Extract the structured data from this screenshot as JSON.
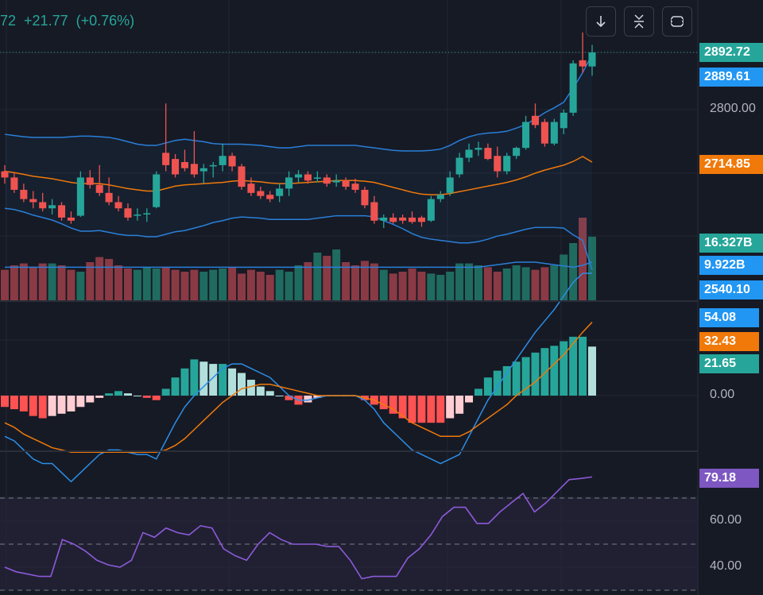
{
  "header": {
    "last_fragment": "72",
    "change": "+21.77",
    "change_pct": "(+0.76%)"
  },
  "toolbar": {
    "buttons": [
      {
        "icon": "arrow-down-icon"
      },
      {
        "icon": "collapse-icon"
      },
      {
        "icon": "fullscreen-icon"
      }
    ]
  },
  "colors": {
    "background": "#161a25",
    "grid": "#232733",
    "up": "#26a69a",
    "down": "#ef5350",
    "up_volume": "#1f6b60",
    "down_volume": "#8a3a44",
    "bollinger": "#2a7fd8",
    "basis": "#f0790a",
    "macd_line": "#2d8ee6",
    "signal_line": "#f0790a",
    "rsi": "#8c5ad8",
    "rsi_band": "#2a2540"
  },
  "price_tags": {
    "last": "2892.72",
    "bb_upper": "2889.61",
    "basis": "2714.85",
    "volume": "16.327B",
    "volume_ma": "9.922B",
    "bb_lower": "2540.10",
    "macd": "54.08",
    "signal": "32.43",
    "histogram": "21.65",
    "rsi": "79.18"
  },
  "axis_labels": {
    "price": [
      "2800.00"
    ],
    "macd": [
      "0.00"
    ],
    "rsi": [
      "60.00",
      "40.00"
    ]
  },
  "chart_data": [
    {
      "type": "candlestick",
      "panel": "price",
      "price_range": [
        2520,
        2920
      ],
      "candles": [
        {
          "o": 2700,
          "h": 2710,
          "l": 2680,
          "c": 2690
        },
        {
          "o": 2690,
          "h": 2698,
          "l": 2665,
          "c": 2670
        },
        {
          "o": 2670,
          "h": 2680,
          "l": 2650,
          "c": 2655
        },
        {
          "o": 2655,
          "h": 2668,
          "l": 2640,
          "c": 2650
        },
        {
          "o": 2650,
          "h": 2665,
          "l": 2635,
          "c": 2640
        },
        {
          "o": 2640,
          "h": 2655,
          "l": 2630,
          "c": 2645
        },
        {
          "o": 2645,
          "h": 2650,
          "l": 2620,
          "c": 2625
        },
        {
          "o": 2625,
          "h": 2635,
          "l": 2615,
          "c": 2620
        },
        {
          "o": 2628,
          "h": 2700,
          "l": 2626,
          "c": 2690
        },
        {
          "o": 2690,
          "h": 2702,
          "l": 2672,
          "c": 2678
        },
        {
          "o": 2678,
          "h": 2710,
          "l": 2660,
          "c": 2665
        },
        {
          "o": 2665,
          "h": 2690,
          "l": 2645,
          "c": 2650
        },
        {
          "o": 2650,
          "h": 2660,
          "l": 2635,
          "c": 2640
        },
        {
          "o": 2640,
          "h": 2648,
          "l": 2620,
          "c": 2625
        },
        {
          "o": 2628,
          "h": 2640,
          "l": 2620,
          "c": 2630
        },
        {
          "o": 2630,
          "h": 2640,
          "l": 2618,
          "c": 2632
        },
        {
          "o": 2642,
          "h": 2700,
          "l": 2640,
          "c": 2695
        },
        {
          "o": 2730,
          "h": 2810,
          "l": 2700,
          "c": 2710
        },
        {
          "o": 2720,
          "h": 2728,
          "l": 2690,
          "c": 2695
        },
        {
          "o": 2715,
          "h": 2735,
          "l": 2700,
          "c": 2705
        },
        {
          "o": 2712,
          "h": 2765,
          "l": 2690,
          "c": 2695
        },
        {
          "o": 2700,
          "h": 2712,
          "l": 2680,
          "c": 2705
        },
        {
          "o": 2708,
          "h": 2715,
          "l": 2690,
          "c": 2710
        },
        {
          "o": 2710,
          "h": 2745,
          "l": 2700,
          "c": 2725
        },
        {
          "o": 2725,
          "h": 2730,
          "l": 2700,
          "c": 2708
        },
        {
          "o": 2708,
          "h": 2712,
          "l": 2670,
          "c": 2675
        },
        {
          "o": 2680,
          "h": 2690,
          "l": 2660,
          "c": 2665
        },
        {
          "o": 2668,
          "h": 2675,
          "l": 2655,
          "c": 2660
        },
        {
          "o": 2662,
          "h": 2668,
          "l": 2650,
          "c": 2655
        },
        {
          "o": 2660,
          "h": 2680,
          "l": 2650,
          "c": 2672
        },
        {
          "o": 2672,
          "h": 2700,
          "l": 2660,
          "c": 2690
        },
        {
          "o": 2690,
          "h": 2702,
          "l": 2682,
          "c": 2695
        },
        {
          "o": 2695,
          "h": 2700,
          "l": 2680,
          "c": 2685
        },
        {
          "o": 2688,
          "h": 2700,
          "l": 2682,
          "c": 2690
        },
        {
          "o": 2690,
          "h": 2695,
          "l": 2675,
          "c": 2680
        },
        {
          "o": 2682,
          "h": 2695,
          "l": 2675,
          "c": 2685
        },
        {
          "o": 2685,
          "h": 2690,
          "l": 2670,
          "c": 2675
        },
        {
          "o": 2680,
          "h": 2688,
          "l": 2665,
          "c": 2670
        },
        {
          "o": 2670,
          "h": 2675,
          "l": 2640,
          "c": 2645
        },
        {
          "o": 2650,
          "h": 2660,
          "l": 2615,
          "c": 2620
        },
        {
          "o": 2620,
          "h": 2630,
          "l": 2608,
          "c": 2625
        },
        {
          "o": 2625,
          "h": 2632,
          "l": 2615,
          "c": 2618
        },
        {
          "o": 2625,
          "h": 2630,
          "l": 2615,
          "c": 2620
        },
        {
          "o": 2625,
          "h": 2635,
          "l": 2615,
          "c": 2618
        },
        {
          "o": 2625,
          "h": 2628,
          "l": 2610,
          "c": 2618
        },
        {
          "o": 2620,
          "h": 2660,
          "l": 2618,
          "c": 2655
        },
        {
          "o": 2655,
          "h": 2668,
          "l": 2650,
          "c": 2662
        },
        {
          "o": 2665,
          "h": 2700,
          "l": 2660,
          "c": 2690
        },
        {
          "o": 2695,
          "h": 2730,
          "l": 2690,
          "c": 2722
        },
        {
          "o": 2722,
          "h": 2745,
          "l": 2715,
          "c": 2735
        },
        {
          "o": 2735,
          "h": 2748,
          "l": 2725,
          "c": 2738
        },
        {
          "o": 2738,
          "h": 2745,
          "l": 2718,
          "c": 2720
        },
        {
          "o": 2725,
          "h": 2740,
          "l": 2690,
          "c": 2700
        },
        {
          "o": 2700,
          "h": 2730,
          "l": 2695,
          "c": 2725
        },
        {
          "o": 2725,
          "h": 2740,
          "l": 2720,
          "c": 2738
        },
        {
          "o": 2738,
          "h": 2790,
          "l": 2735,
          "c": 2780
        },
        {
          "o": 2790,
          "h": 2810,
          "l": 2770,
          "c": 2775
        },
        {
          "o": 2780,
          "h": 2785,
          "l": 2740,
          "c": 2745
        },
        {
          "o": 2745,
          "h": 2785,
          "l": 2742,
          "c": 2780
        },
        {
          "o": 2770,
          "h": 2800,
          "l": 2760,
          "c": 2795
        },
        {
          "o": 2795,
          "h": 2880,
          "l": 2790,
          "c": 2875
        },
        {
          "o": 2880,
          "h": 2925,
          "l": 2860,
          "c": 2870
        },
        {
          "o": 2870,
          "h": 2905,
          "l": 2855,
          "c": 2892.72
        }
      ],
      "bb_upper": [
        2760,
        2758,
        2756,
        2755,
        2755,
        2755,
        2755,
        2756,
        2757,
        2757,
        2756,
        2755,
        2752,
        2748,
        2744,
        2742,
        2742,
        2746,
        2750,
        2752,
        2750,
        2748,
        2745,
        2744,
        2744,
        2744,
        2743,
        2742,
        2740,
        2738,
        2738,
        2740,
        2742,
        2742,
        2742,
        2742,
        2742,
        2742,
        2740,
        2738,
        2736,
        2734,
        2733,
        2733,
        2733,
        2734,
        2736,
        2742,
        2750,
        2756,
        2760,
        2762,
        2763,
        2765,
        2770,
        2776,
        2785,
        2795,
        2803,
        2812,
        2835,
        2860,
        2889.61
      ],
      "basis": [
        2700,
        2698,
        2695,
        2692,
        2690,
        2688,
        2685,
        2682,
        2680,
        2680,
        2680,
        2678,
        2675,
        2672,
        2670,
        2668,
        2668,
        2672,
        2676,
        2678,
        2679,
        2680,
        2681,
        2682,
        2684,
        2685,
        2684,
        2683,
        2681,
        2680,
        2680,
        2681,
        2682,
        2683,
        2684,
        2685,
        2685,
        2685,
        2684,
        2682,
        2678,
        2674,
        2670,
        2666,
        2663,
        2662,
        2662,
        2664,
        2667,
        2670,
        2673,
        2676,
        2679,
        2682,
        2686,
        2691,
        2697,
        2702,
        2706,
        2710,
        2716,
        2724,
        2714.85
      ],
      "bb_lower": [
        2640,
        2638,
        2634,
        2629,
        2625,
        2621,
        2615,
        2608,
        2603,
        2603,
        2604,
        2601,
        2598,
        2596,
        2596,
        2594,
        2594,
        2598,
        2602,
        2604,
        2608,
        2612,
        2617,
        2620,
        2624,
        2626,
        2625,
        2624,
        2622,
        2622,
        2622,
        2622,
        2622,
        2624,
        2626,
        2628,
        2628,
        2628,
        2628,
        2626,
        2620,
        2614,
        2607,
        2599,
        2593,
        2590,
        2588,
        2586,
        2584,
        2584,
        2586,
        2590,
        2595,
        2598,
        2602,
        2606,
        2609,
        2609,
        2609,
        2608,
        2597,
        2588,
        2540.1
      ],
      "volume": [
        0.48,
        0.55,
        0.58,
        0.52,
        0.58,
        0.58,
        0.55,
        0.48,
        0.45,
        0.6,
        0.68,
        0.65,
        0.55,
        0.5,
        0.48,
        0.52,
        0.5,
        0.52,
        0.48,
        0.45,
        0.48,
        0.45,
        0.48,
        0.5,
        0.52,
        0.42,
        0.48,
        0.45,
        0.4,
        0.48,
        0.45,
        0.55,
        0.6,
        0.75,
        0.7,
        0.8,
        0.6,
        0.55,
        0.62,
        0.58,
        0.48,
        0.42,
        0.45,
        0.5,
        0.45,
        0.42,
        0.4,
        0.45,
        0.58,
        0.58,
        0.55,
        0.52,
        0.45,
        0.5,
        0.55,
        0.52,
        0.48,
        0.52,
        0.55,
        0.72,
        0.9,
        1.3,
        1.0
      ],
      "volume_ma": [
        0.52,
        0.52,
        0.52,
        0.52,
        0.52,
        0.52,
        0.52,
        0.52,
        0.52,
        0.52,
        0.52,
        0.52,
        0.52,
        0.52,
        0.52,
        0.52,
        0.52,
        0.52,
        0.52,
        0.52,
        0.52,
        0.52,
        0.52,
        0.52,
        0.52,
        0.52,
        0.52,
        0.52,
        0.52,
        0.52,
        0.52,
        0.52,
        0.52,
        0.52,
        0.52,
        0.52,
        0.52,
        0.52,
        0.52,
        0.52,
        0.52,
        0.52,
        0.52,
        0.52,
        0.52,
        0.52,
        0.52,
        0.52,
        0.52,
        0.52,
        0.52,
        0.54,
        0.56,
        0.58,
        0.6,
        0.6,
        0.6,
        0.58,
        0.56,
        0.54,
        0.52,
        0.55,
        0.6
      ]
    },
    {
      "type": "macd",
      "panel": "macd",
      "macd": [
        -18,
        -20,
        -24,
        -28,
        -30,
        -30,
        -34,
        -38,
        -34,
        -30,
        -26,
        -24,
        -24,
        -25,
        -26,
        -26,
        -28,
        -20,
        -12,
        -5,
        0,
        4,
        8,
        12,
        14,
        14,
        12,
        10,
        8,
        4,
        0,
        -2,
        -2,
        -1,
        0,
        0,
        0,
        0,
        -2,
        -6,
        -12,
        -16,
        -20,
        -24,
        -26,
        -28,
        -30,
        -28,
        -26,
        -18,
        -10,
        -2,
        4,
        10,
        16,
        22,
        28,
        33,
        38,
        44,
        50,
        54,
        54.08
      ],
      "signal": [
        -12,
        -14,
        -17,
        -19,
        -21,
        -23,
        -24,
        -25,
        -25,
        -25,
        -25,
        -25,
        -25,
        -25,
        -25,
        -25,
        -25,
        -24,
        -22,
        -19,
        -15,
        -11,
        -7,
        -3,
        0,
        3,
        4,
        5,
        5,
        4,
        3,
        2,
        1,
        0,
        0,
        0,
        0,
        0,
        -1,
        -2,
        -4,
        -6,
        -9,
        -12,
        -14,
        -16,
        -18,
        -18,
        -18,
        -16,
        -13,
        -10,
        -7,
        -4,
        0,
        3,
        6,
        10,
        14,
        18,
        23,
        28,
        32.43
      ],
      "histogram": [
        -5,
        -6,
        -7,
        -9,
        -10,
        -9,
        -8,
        -7,
        -5,
        -3,
        -1,
        1,
        2,
        1,
        0,
        -1,
        -2,
        3,
        8,
        12,
        16,
        15,
        14,
        14,
        12,
        10,
        7,
        4,
        2,
        0,
        -2,
        -4,
        -3,
        -1,
        0,
        0,
        0,
        0,
        -2,
        -4,
        -6,
        -8,
        -10,
        -12,
        -12,
        -12,
        -12,
        -10,
        -8,
        -3,
        3,
        8,
        11,
        13,
        15,
        17,
        19,
        21,
        22,
        24,
        26,
        26,
        21.65
      ],
      "zero_label": "0.00"
    },
    {
      "type": "line",
      "panel": "rsi",
      "ylim": [
        34,
        82
      ],
      "bands": [
        70,
        50,
        30
      ],
      "values": [
        40,
        38,
        37,
        36,
        36,
        52,
        50,
        47,
        43,
        41,
        40,
        43,
        55,
        53,
        57,
        55,
        54,
        58,
        57,
        48,
        45,
        43,
        50,
        55,
        52,
        50,
        50,
        50,
        49,
        49,
        43,
        35,
        36,
        36,
        36,
        44,
        48,
        54,
        62,
        66,
        66,
        59,
        59,
        64,
        68,
        72,
        64,
        68,
        73,
        78,
        78.5,
        79.18
      ]
    }
  ]
}
